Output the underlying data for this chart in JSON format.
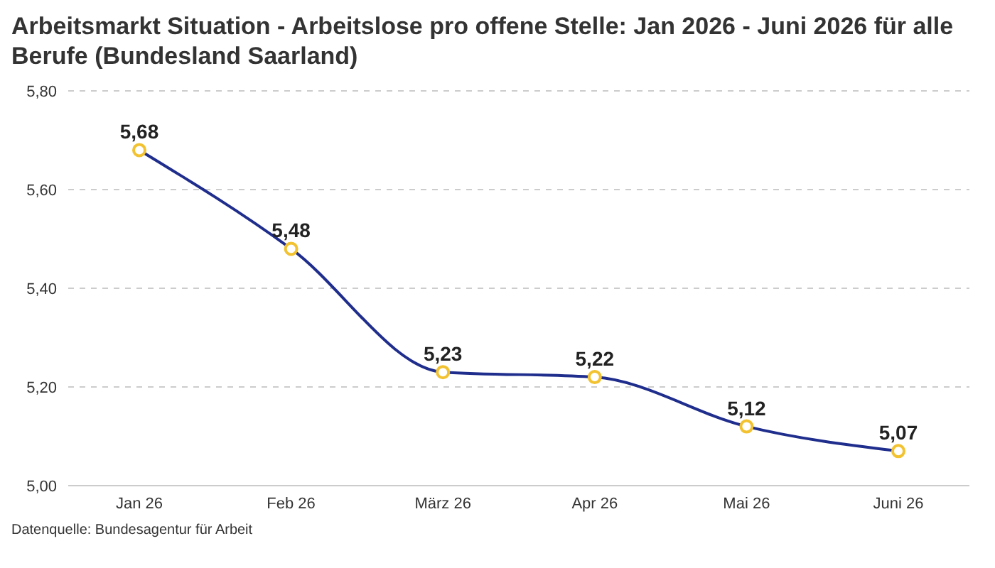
{
  "chart_data": {
    "type": "line",
    "title": "Arbeitsmarkt Situation - Arbeitslose pro offene Stelle: Jan 2026 - Juni 2026 für alle Berufe (Bundesland Saarland)",
    "categories": [
      "Jan 26",
      "Feb 26",
      "März 26",
      "Apr 26",
      "Mai 26",
      "Juni 26"
    ],
    "series": [
      {
        "color": "#1f2d8c",
        "values": [
          5.68,
          5.48,
          5.23,
          5.22,
          5.12,
          5.07
        ],
        "value_labels": [
          "5,68",
          "5,48",
          "5,23",
          "5,22",
          "5,12",
          "5,07"
        ]
      }
    ],
    "ylim": [
      5.0,
      5.8
    ],
    "yticks": [
      {
        "value": 5.0,
        "label": "5,00"
      },
      {
        "value": 5.2,
        "label": "5,20"
      },
      {
        "value": 5.4,
        "label": "5,40"
      },
      {
        "value": 5.6,
        "label": "5,60"
      },
      {
        "value": 5.8,
        "label": "5,80"
      }
    ],
    "grid": "y",
    "marker": "circle",
    "line_style": "solid",
    "legend": false,
    "annotations": [
      "Datenquelle: Bundesagentur für Arbeit"
    ]
  }
}
